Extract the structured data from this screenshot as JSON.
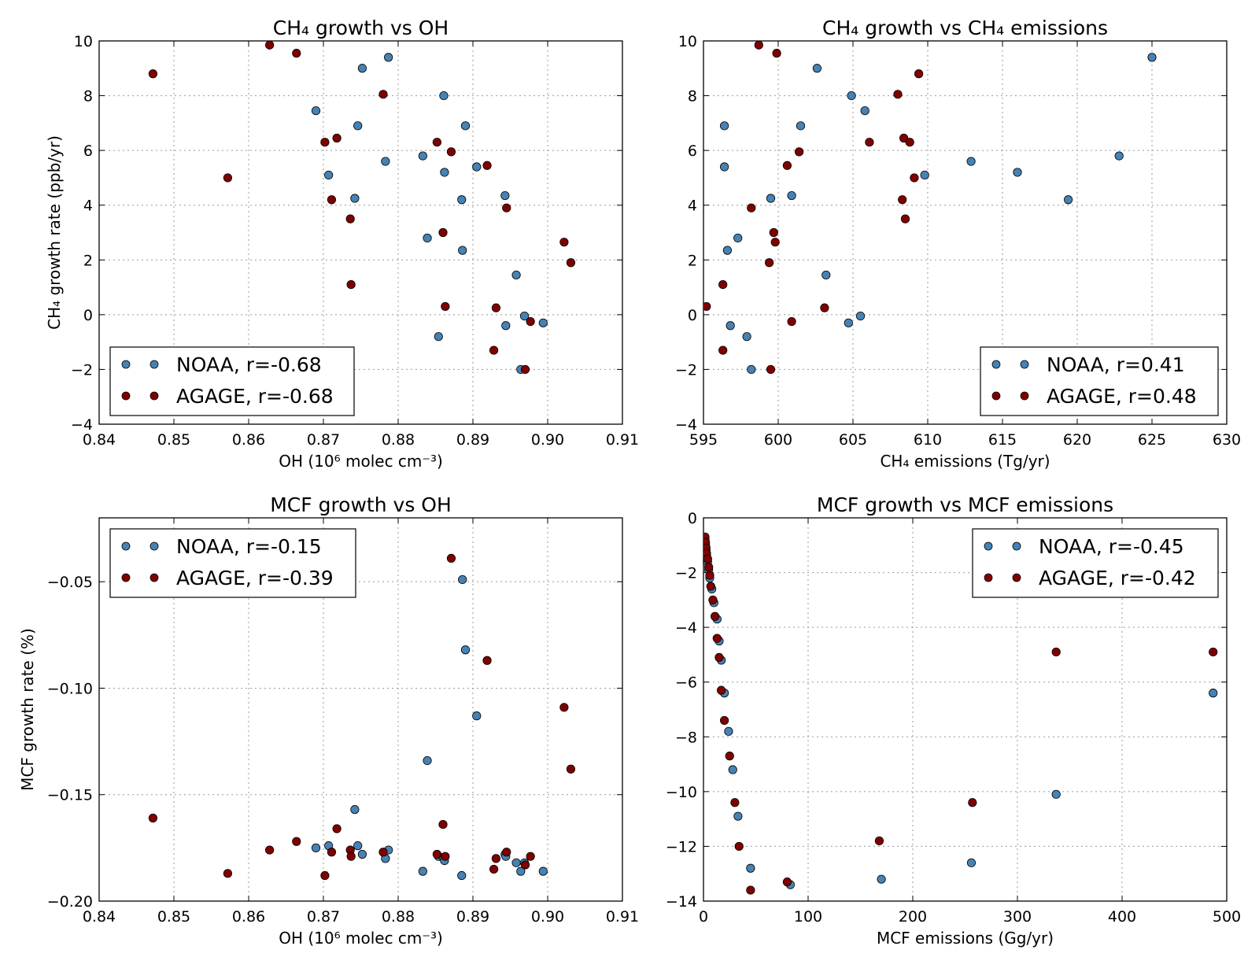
{
  "colors": {
    "noaa": "#4682b4",
    "agage": "#800000"
  },
  "chart_data": [
    {
      "type": "scatter",
      "title": "CH₄ growth vs OH",
      "xlabel": "OH (10⁶ molec cm⁻³)",
      "ylabel": "CH₄ growth rate (ppb/yr)",
      "xlim": [
        0.84,
        0.91
      ],
      "ylim": [
        -4,
        10
      ],
      "xticks": [
        0.84,
        0.85,
        0.86,
        0.87,
        0.88,
        0.89,
        0.9,
        0.91
      ],
      "xtick_labels": [
        "0.84",
        "0.85",
        "0.86",
        "0.87",
        "0.88",
        "0.89",
        "0.90",
        "0.91"
      ],
      "yticks": [
        -4,
        -2,
        0,
        2,
        4,
        6,
        8,
        10
      ],
      "ytick_labels": [
        "−4",
        "−2",
        "0",
        "2",
        "4",
        "6",
        "8",
        "10"
      ],
      "grid": true,
      "legend_position": "lower-left",
      "series": [
        {
          "name": "NOAA, r=-0.68",
          "color": "#4682b4",
          "x": [
            0.869,
            0.8707,
            0.8742,
            0.8746,
            0.8752,
            0.8783,
            0.8787,
            0.8833,
            0.8839,
            0.8854,
            0.8861,
            0.8862,
            0.8885,
            0.8886,
            0.889,
            0.8905,
            0.8943,
            0.8944,
            0.8958,
            0.8964,
            0.8969,
            0.8994
          ],
          "y": [
            7.45,
            5.1,
            4.25,
            6.9,
            9.0,
            5.6,
            9.4,
            5.8,
            2.8,
            -0.8,
            8.0,
            5.2,
            4.2,
            2.35,
            6.9,
            5.4,
            4.35,
            -0.4,
            1.45,
            -2.0,
            -0.05,
            -0.3
          ]
        },
        {
          "name": "AGAGE, r=-0.68",
          "color": "#800000",
          "x": [
            0.8472,
            0.8572,
            0.8628,
            0.8664,
            0.8702,
            0.8711,
            0.8718,
            0.8736,
            0.8737,
            0.878,
            0.8852,
            0.886,
            0.8863,
            0.8871,
            0.8919,
            0.8928,
            0.8931,
            0.8945,
            0.897,
            0.8977,
            0.9022,
            0.9031
          ],
          "y": [
            8.8,
            5.0,
            9.85,
            9.55,
            6.3,
            4.2,
            6.45,
            3.5,
            1.1,
            8.05,
            6.3,
            3.0,
            0.3,
            5.95,
            5.45,
            -1.3,
            0.25,
            3.9,
            -2.0,
            -0.25,
            2.65,
            1.9
          ]
        }
      ]
    },
    {
      "type": "scatter",
      "title": "CH₄ growth vs CH₄ emissions",
      "xlabel": "CH₄ emissions (Tg/yr)",
      "ylabel": "",
      "xlim": [
        595,
        630
      ],
      "ylim": [
        -4,
        10
      ],
      "xticks": [
        595,
        600,
        605,
        610,
        615,
        620,
        625,
        630
      ],
      "xtick_labels": [
        "595",
        "600",
        "605",
        "610",
        "615",
        "620",
        "625",
        "630"
      ],
      "yticks": [
        -4,
        -2,
        0,
        2,
        4,
        6,
        8,
        10
      ],
      "ytick_labels": [
        "−4",
        "−2",
        "0",
        "2",
        "4",
        "6",
        "8",
        "10"
      ],
      "grid": true,
      "legend_position": "lower-right",
      "series": [
        {
          "name": "NOAA, r=0.41",
          "color": "#4682b4",
          "x": [
            596.4,
            596.4,
            596.6,
            596.8,
            597.3,
            597.9,
            598.2,
            599.5,
            600.9,
            601.5,
            602.6,
            603.2,
            604.7,
            604.9,
            605.5,
            605.8,
            609.8,
            612.9,
            616.0,
            619.4,
            622.8,
            625.0
          ],
          "y": [
            6.9,
            5.4,
            2.35,
            -0.4,
            2.8,
            -0.8,
            -2.0,
            4.25,
            4.35,
            6.9,
            9.0,
            1.45,
            -0.3,
            8.0,
            -0.05,
            7.45,
            5.1,
            5.6,
            5.2,
            4.2,
            5.8,
            9.4
          ],
          "note": ""
        },
        {
          "name": "AGAGE, r=0.48",
          "color": "#800000",
          "x": [
            595.2,
            596.3,
            596.3,
            598.2,
            598.7,
            599.4,
            599.5,
            599.7,
            599.8,
            599.9,
            600.6,
            600.9,
            601.4,
            603.1,
            606.1,
            608.0,
            608.3,
            608.4,
            608.5,
            608.8,
            609.1,
            609.4
          ],
          "y": [
            0.3,
            1.1,
            -1.3,
            3.9,
            9.85,
            1.9,
            -2.0,
            3.0,
            2.65,
            9.55,
            5.45,
            -0.25,
            5.95,
            0.25,
            6.3,
            8.05,
            4.2,
            6.45,
            3.5,
            6.3,
            5.0,
            8.8
          ]
        }
      ]
    },
    {
      "type": "scatter",
      "title": "MCF growth vs OH",
      "xlabel": "OH (10⁶ molec cm⁻³)",
      "ylabel": "MCF growth rate (%)",
      "xlim": [
        0.84,
        0.91
      ],
      "ylim": [
        -0.2,
        -0.02
      ],
      "xticks": [
        0.84,
        0.85,
        0.86,
        0.87,
        0.88,
        0.89,
        0.9,
        0.91
      ],
      "xtick_labels": [
        "0.84",
        "0.85",
        "0.86",
        "0.87",
        "0.88",
        "0.89",
        "0.90",
        "0.91"
      ],
      "yticks": [
        -0.2,
        -0.15,
        -0.1,
        -0.05
      ],
      "ytick_labels": [
        "−0.20",
        "−0.15",
        "−0.10",
        "−0.05"
      ],
      "grid": true,
      "legend_position": "upper-left",
      "series": [
        {
          "name": "NOAA, r=-0.15",
          "color": "#4682b4",
          "x": [
            0.869,
            0.8707,
            0.8742,
            0.8746,
            0.8752,
            0.8783,
            0.8787,
            0.8833,
            0.8839,
            0.8854,
            0.8861,
            0.8862,
            0.8885,
            0.8886,
            0.889,
            0.8905,
            0.8943,
            0.8944,
            0.8958,
            0.8964,
            0.8969,
            0.8994
          ],
          "y": [
            -0.175,
            -0.174,
            -0.157,
            -0.174,
            -0.178,
            -0.18,
            -0.176,
            -0.186,
            -0.134,
            -0.179,
            -0.18,
            -0.181,
            -0.188,
            -0.049,
            -0.082,
            -0.113,
            -0.178,
            -0.179,
            -0.182,
            -0.186,
            -0.182,
            -0.186
          ]
        },
        {
          "name": "AGAGE, r=-0.39",
          "color": "#800000",
          "x": [
            0.8472,
            0.8572,
            0.8628,
            0.8664,
            0.8702,
            0.8711,
            0.8718,
            0.8736,
            0.8737,
            0.878,
            0.8852,
            0.886,
            0.8863,
            0.8871,
            0.8919,
            0.8928,
            0.8931,
            0.8945,
            0.897,
            0.8977,
            0.9022,
            0.9031
          ],
          "y": [
            -0.161,
            -0.187,
            -0.176,
            -0.172,
            -0.188,
            -0.177,
            -0.166,
            -0.176,
            -0.179,
            -0.177,
            -0.178,
            -0.164,
            -0.179,
            -0.039,
            -0.087,
            -0.185,
            -0.18,
            -0.177,
            -0.183,
            -0.179,
            -0.109,
            -0.138
          ]
        }
      ]
    },
    {
      "type": "scatter",
      "title": "MCF growth vs MCF emissions",
      "xlabel": "MCF emissions (Gg/yr)",
      "ylabel": "",
      "xlim": [
        0,
        500
      ],
      "ylim": [
        -14,
        0
      ],
      "xticks": [
        0,
        100,
        200,
        300,
        400,
        500
      ],
      "xtick_labels": [
        "0",
        "100",
        "200",
        "300",
        "400",
        "500"
      ],
      "yticks": [
        -14,
        -12,
        -10,
        -8,
        -6,
        -4,
        -2,
        0
      ],
      "ytick_labels": [
        "−14",
        "−12",
        "−10",
        "−8",
        "−6",
        "−4",
        "−2",
        "0"
      ],
      "grid": true,
      "legend_position": "upper-right",
      "series": [
        {
          "name": "NOAA, r=-0.45",
          "color": "#4682b4",
          "x": [
            1.5,
            2,
            2.5,
            3,
            4,
            5,
            6,
            8,
            10,
            13,
            15,
            17,
            20,
            24,
            28,
            33,
            45,
            83,
            170,
            256,
            337,
            487
          ],
          "y": [
            -0.8,
            -1.0,
            -1.2,
            -1.4,
            -1.6,
            -1.9,
            -2.2,
            -2.6,
            -3.1,
            -3.7,
            -4.5,
            -5.2,
            -6.4,
            -7.8,
            -9.2,
            -10.9,
            -12.8,
            -13.4,
            -13.2,
            -12.6,
            -10.1,
            -6.4
          ]
        },
        {
          "name": "AGAGE, r=-0.42",
          "color": "#800000",
          "x": [
            1.5,
            2,
            2.5,
            3,
            4,
            5,
            6,
            7,
            9,
            11,
            13,
            15,
            17,
            20,
            25,
            30,
            34,
            45,
            80,
            168,
            257,
            337,
            487
          ],
          "y": [
            -0.7,
            -0.9,
            -1.1,
            -1.3,
            -1.5,
            -1.8,
            -2.1,
            -2.5,
            -3.0,
            -3.6,
            -4.4,
            -5.1,
            -6.3,
            -7.4,
            -8.7,
            -10.4,
            -12.0,
            -13.6,
            -13.3,
            -11.8,
            -10.4,
            -4.9,
            -4.9
          ]
        }
      ]
    }
  ]
}
